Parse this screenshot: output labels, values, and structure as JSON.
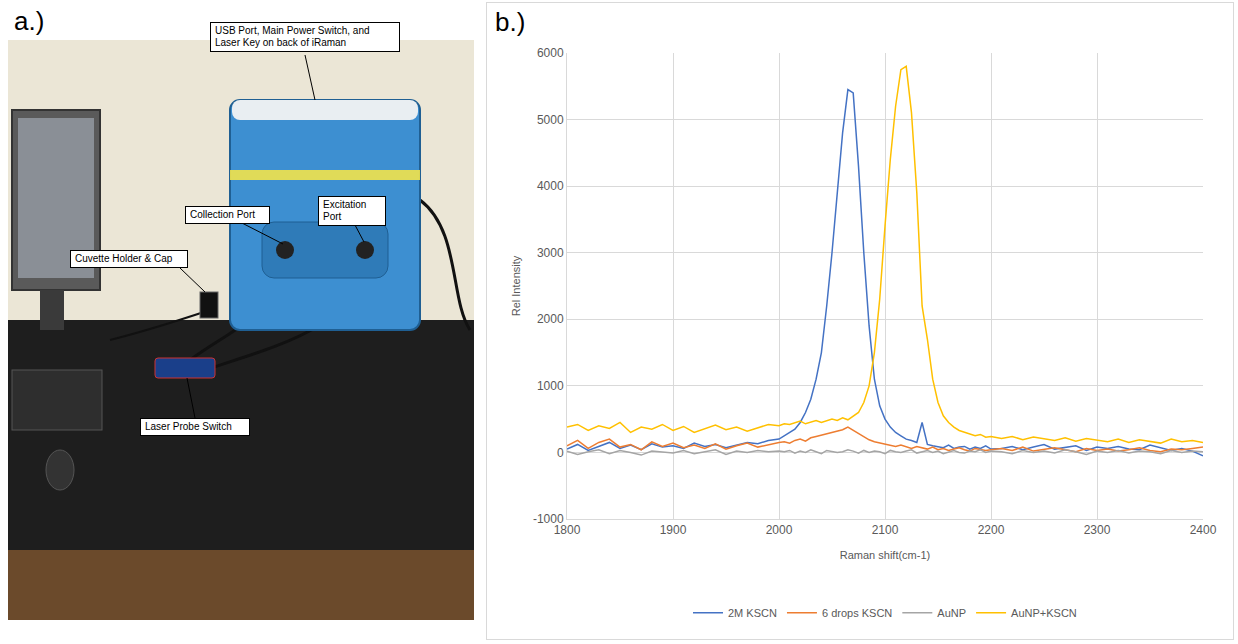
{
  "diagram": {
    "panel_label": "a.)",
    "labels": {
      "usb_port": "USB Port, Main Power Switch, and Laser Key on back of iRaman",
      "collection_port": "Collection Port",
      "excitation_port": "Excitation Port",
      "cuvette_holder": "Cuvette Holder & Cap",
      "laser_probe_switch": "Laser Probe Switch"
    }
  },
  "chart_data": {
    "panel_label": "b.)",
    "type": "line",
    "x_label": "Raman shift(cm-1)",
    "y_label": "Rel Intensity",
    "x": [
      1800,
      1810,
      1820,
      1830,
      1840,
      1850,
      1860,
      1870,
      1880,
      1890,
      1900,
      1910,
      1920,
      1930,
      1940,
      1950,
      1960,
      1970,
      1980,
      1990,
      2000,
      2005,
      2010,
      2015,
      2020,
      2025,
      2030,
      2035,
      2040,
      2045,
      2050,
      2055,
      2060,
      2065,
      2070,
      2075,
      2080,
      2085,
      2090,
      2095,
      2100,
      2105,
      2110,
      2115,
      2120,
      2125,
      2130,
      2135,
      2140,
      2145,
      2150,
      2155,
      2160,
      2165,
      2170,
      2175,
      2180,
      2185,
      2190,
      2195,
      2200,
      2210,
      2220,
      2230,
      2240,
      2250,
      2260,
      2270,
      2280,
      2290,
      2300,
      2310,
      2320,
      2330,
      2340,
      2350,
      2360,
      2370,
      2380,
      2390,
      2400
    ],
    "xlim": [
      1800,
      2400
    ],
    "xticks": [
      1800,
      1900,
      2000,
      2100,
      2200,
      2300,
      2400
    ],
    "ylim": [
      -1000,
      6000
    ],
    "yticks": [
      -1000,
      0,
      1000,
      2000,
      3000,
      4000,
      5000,
      6000
    ],
    "grid": true,
    "legend": "bottom",
    "series": [
      {
        "name": "2M KSCN",
        "color": "#4472c4",
        "values": [
          50,
          120,
          30,
          90,
          150,
          60,
          110,
          40,
          130,
          80,
          100,
          60,
          140,
          90,
          120,
          70,
          110,
          150,
          130,
          180,
          200,
          250,
          300,
          350,
          450,
          600,
          800,
          1100,
          1500,
          2200,
          3000,
          3900,
          4800,
          5450,
          5400,
          4300,
          3000,
          1900,
          1100,
          700,
          500,
          380,
          300,
          250,
          200,
          180,
          150,
          450,
          120,
          100,
          90,
          70,
          110,
          60,
          80,
          90,
          50,
          80,
          60,
          100,
          50,
          60,
          90,
          40,
          80,
          120,
          50,
          70,
          100,
          30,
          80,
          60,
          90,
          50,
          40,
          110,
          70,
          30,
          60,
          20,
          -50
        ]
      },
      {
        "name": "6 drops KSCN",
        "color": "#ed7d31",
        "values": [
          100,
          180,
          60,
          150,
          200,
          80,
          120,
          40,
          160,
          90,
          140,
          70,
          110,
          60,
          130,
          50,
          100,
          140,
          80,
          120,
          150,
          160,
          140,
          180,
          200,
          170,
          220,
          240,
          260,
          280,
          300,
          320,
          340,
          380,
          330,
          280,
          230,
          190,
          160,
          140,
          120,
          100,
          90,
          110,
          80,
          60,
          90,
          70,
          50,
          80,
          40,
          60,
          30,
          50,
          70,
          40,
          20,
          60,
          50,
          30,
          40,
          60,
          30,
          80,
          20,
          50,
          70,
          40,
          10,
          60,
          30,
          50,
          20,
          40,
          70,
          30,
          10,
          50,
          40,
          60,
          80
        ]
      },
      {
        "name": "AuNP",
        "color": "#a5a5a5",
        "values": [
          20,
          -30,
          10,
          40,
          -20,
          30,
          0,
          -40,
          20,
          10,
          -10,
          30,
          -20,
          10,
          40,
          -30,
          20,
          0,
          30,
          10,
          20,
          10,
          30,
          -10,
          20,
          0,
          40,
          10,
          -20,
          30,
          20,
          0,
          10,
          40,
          20,
          -10,
          30,
          0,
          20,
          10,
          -20,
          30,
          10,
          0,
          20,
          40,
          -10,
          10,
          30,
          0,
          20,
          -20,
          10,
          30,
          0,
          -10,
          20,
          10,
          40,
          0,
          20,
          10,
          -20,
          30,
          0,
          20,
          -10,
          40,
          10,
          -30,
          20,
          0,
          30,
          -10,
          20,
          10,
          -20,
          30,
          0,
          20,
          10
        ]
      },
      {
        "name": "AuNP+KSCN",
        "color": "#ffc000",
        "values": [
          380,
          420,
          330,
          400,
          360,
          450,
          300,
          380,
          350,
          420,
          330,
          390,
          300,
          360,
          410,
          340,
          380,
          320,
          370,
          420,
          400,
          430,
          420,
          450,
          470,
          430,
          460,
          480,
          450,
          470,
          500,
          480,
          520,
          490,
          540,
          600,
          750,
          1000,
          1500,
          2300,
          3400,
          4400,
          5200,
          5750,
          5800,
          5100,
          3900,
          2200,
          1700,
          1100,
          750,
          550,
          450,
          380,
          330,
          300,
          280,
          250,
          270,
          230,
          240,
          210,
          240,
          190,
          230,
          200,
          180,
          220,
          170,
          210,
          190,
          160,
          200,
          150,
          190,
          170,
          140,
          200,
          160,
          180,
          150
        ]
      }
    ]
  }
}
